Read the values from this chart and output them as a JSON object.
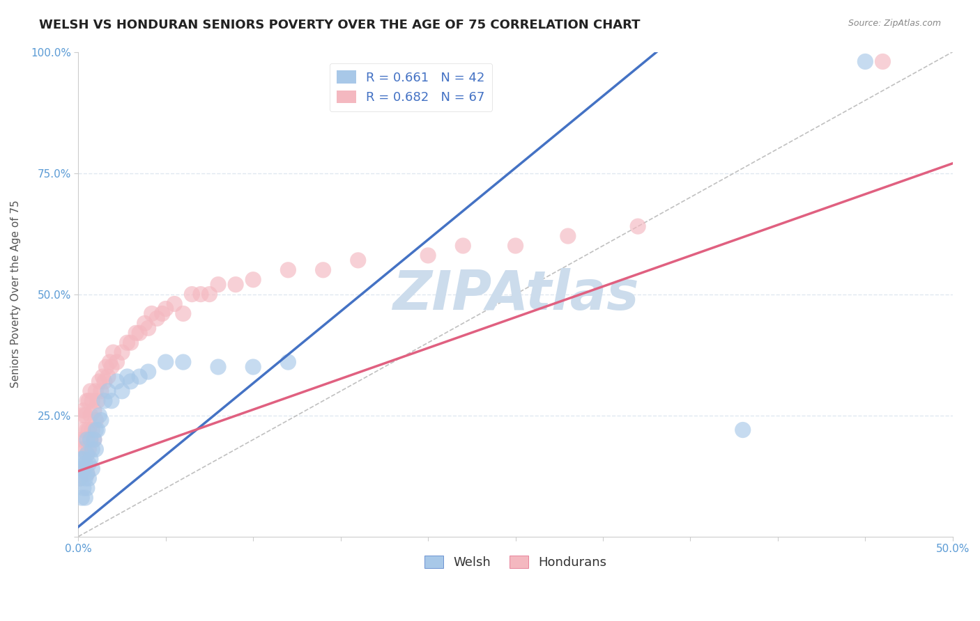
{
  "title": "WELSH VS HONDURAN SENIORS POVERTY OVER THE AGE OF 75 CORRELATION CHART",
  "source": "Source: ZipAtlas.com",
  "ylabel": "Seniors Poverty Over the Age of 75",
  "xlim": [
    0,
    0.5
  ],
  "ylim": [
    0,
    1.0
  ],
  "xtick_positions": [
    0.0,
    0.05,
    0.1,
    0.15,
    0.2,
    0.25,
    0.3,
    0.35,
    0.4,
    0.45,
    0.5
  ],
  "xtick_labels": [
    "0.0%",
    "",
    "",
    "",
    "",
    "",
    "",
    "",
    "",
    "",
    "50.0%"
  ],
  "ytick_positions": [
    0.0,
    0.25,
    0.5,
    0.75,
    1.0
  ],
  "ytick_labels": [
    "",
    "25.0%",
    "50.0%",
    "75.0%",
    "100.0%"
  ],
  "welsh_R": 0.661,
  "welsh_N": 42,
  "honduran_R": 0.682,
  "honduran_N": 67,
  "welsh_color": "#a8c8e8",
  "honduran_color": "#f4b8c0",
  "welsh_line_color": "#4472c4",
  "honduran_line_color": "#e06080",
  "ref_line_color": "#c0c0c0",
  "grid_color": "#e0e8f0",
  "background_color": "#ffffff",
  "watermark_color": "#ccdcec",
  "title_fontsize": 13,
  "label_fontsize": 11,
  "tick_fontsize": 11,
  "legend_fontsize": 13,
  "welsh_line_x0": 0.0,
  "welsh_line_y0": 0.02,
  "welsh_line_x1": 0.27,
  "welsh_line_y1": 0.82,
  "honduran_line_x0": 0.0,
  "honduran_line_y0": 0.135,
  "honduran_line_x1": 0.5,
  "honduran_line_y1": 0.77,
  "welsh_x": [
    0.001,
    0.002,
    0.002,
    0.002,
    0.003,
    0.003,
    0.003,
    0.004,
    0.004,
    0.004,
    0.005,
    0.005,
    0.005,
    0.005,
    0.006,
    0.006,
    0.007,
    0.007,
    0.008,
    0.008,
    0.009,
    0.01,
    0.01,
    0.011,
    0.012,
    0.013,
    0.015,
    0.017,
    0.019,
    0.022,
    0.025,
    0.028,
    0.03,
    0.035,
    0.04,
    0.05,
    0.06,
    0.08,
    0.1,
    0.12,
    0.38,
    0.45
  ],
  "welsh_y": [
    0.12,
    0.08,
    0.14,
    0.16,
    0.1,
    0.13,
    0.16,
    0.08,
    0.12,
    0.15,
    0.1,
    0.13,
    0.17,
    0.2,
    0.12,
    0.15,
    0.16,
    0.2,
    0.14,
    0.18,
    0.2,
    0.18,
    0.22,
    0.22,
    0.25,
    0.24,
    0.28,
    0.3,
    0.28,
    0.32,
    0.3,
    0.33,
    0.32,
    0.33,
    0.34,
    0.36,
    0.36,
    0.35,
    0.35,
    0.36,
    0.22,
    0.98
  ],
  "honduran_x": [
    0.001,
    0.001,
    0.002,
    0.002,
    0.002,
    0.003,
    0.003,
    0.003,
    0.003,
    0.004,
    0.004,
    0.004,
    0.005,
    0.005,
    0.005,
    0.005,
    0.006,
    0.006,
    0.006,
    0.007,
    0.007,
    0.007,
    0.008,
    0.008,
    0.009,
    0.009,
    0.01,
    0.01,
    0.011,
    0.012,
    0.013,
    0.014,
    0.015,
    0.016,
    0.017,
    0.018,
    0.019,
    0.02,
    0.022,
    0.025,
    0.028,
    0.03,
    0.033,
    0.035,
    0.038,
    0.04,
    0.042,
    0.045,
    0.048,
    0.05,
    0.055,
    0.06,
    0.065,
    0.07,
    0.075,
    0.08,
    0.09,
    0.1,
    0.12,
    0.14,
    0.16,
    0.2,
    0.22,
    0.25,
    0.28,
    0.32,
    0.46
  ],
  "honduran_y": [
    0.12,
    0.18,
    0.14,
    0.2,
    0.25,
    0.14,
    0.18,
    0.22,
    0.26,
    0.15,
    0.2,
    0.25,
    0.13,
    0.17,
    0.22,
    0.28,
    0.18,
    0.22,
    0.28,
    0.2,
    0.25,
    0.3,
    0.22,
    0.28,
    0.2,
    0.26,
    0.24,
    0.3,
    0.28,
    0.32,
    0.3,
    0.33,
    0.32,
    0.35,
    0.33,
    0.36,
    0.35,
    0.38,
    0.36,
    0.38,
    0.4,
    0.4,
    0.42,
    0.42,
    0.44,
    0.43,
    0.46,
    0.45,
    0.46,
    0.47,
    0.48,
    0.46,
    0.5,
    0.5,
    0.5,
    0.52,
    0.52,
    0.53,
    0.55,
    0.55,
    0.57,
    0.58,
    0.6,
    0.6,
    0.62,
    0.64,
    0.98
  ]
}
